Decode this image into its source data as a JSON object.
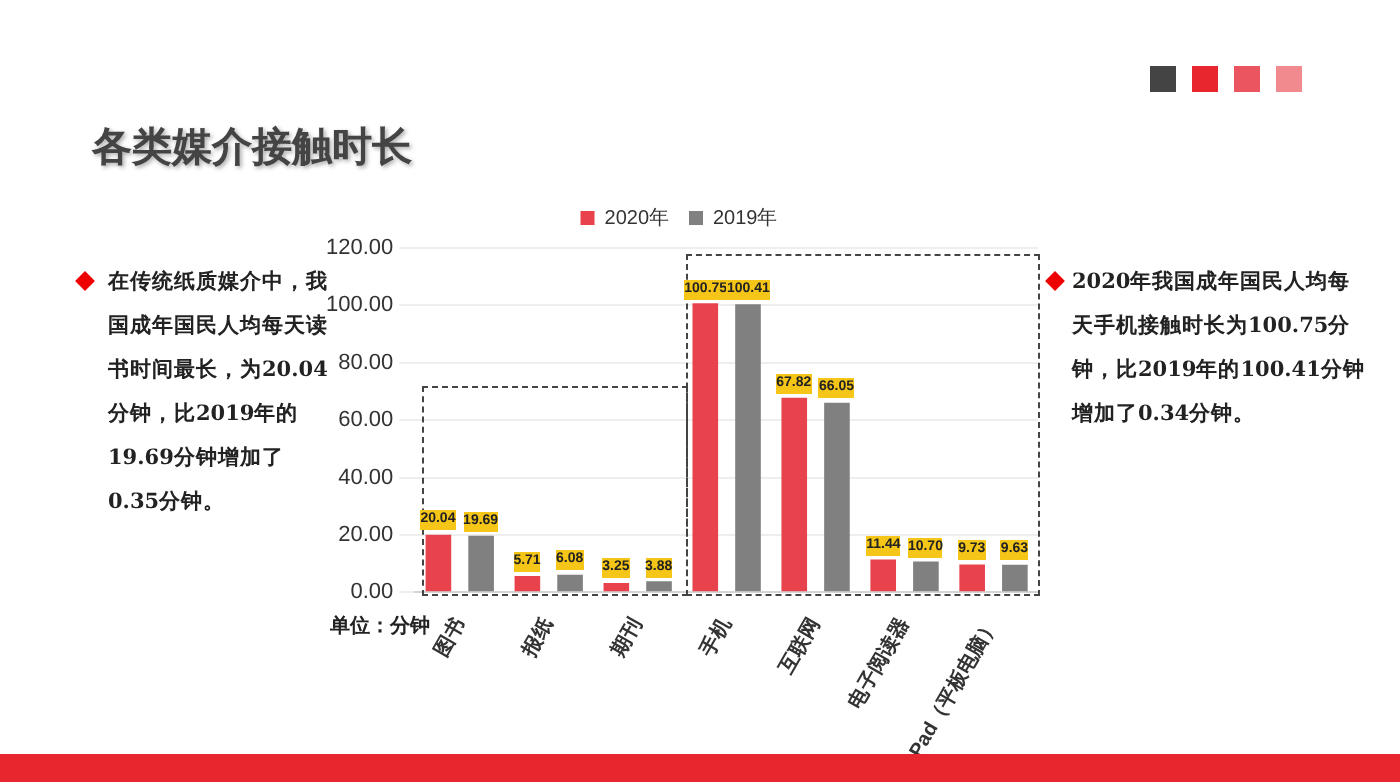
{
  "chart_data": {
    "type": "bar",
    "title": "各类媒介接触时长",
    "categories": [
      "图书",
      "报纸",
      "期刊",
      "手机",
      "互联网",
      "电子阅读器",
      "Pad（平板电脑）"
    ],
    "series": [
      {
        "name": "2020年",
        "color": "#e8434d",
        "values": [
          20.04,
          5.71,
          3.25,
          100.75,
          67.82,
          11.44,
          9.73
        ],
        "value_labels": [
          "20.04",
          "5.71",
          "3.25",
          "100.75",
          "67.82",
          "11.44",
          "9.73"
        ]
      },
      {
        "name": "2019年",
        "color": "#808080",
        "values": [
          19.69,
          6.08,
          3.88,
          100.41,
          66.05,
          10.7,
          9.63
        ],
        "value_labels": [
          "19.69",
          "6.08",
          "3.88",
          "100.41",
          "66.05",
          "10.70",
          "9.63"
        ]
      }
    ],
    "ylim": [
      0,
      120
    ],
    "yticks": [
      {
        "value": 0,
        "label": "0.00"
      },
      {
        "value": 20,
        "label": "20.00"
      },
      {
        "value": 40,
        "label": "40.00"
      },
      {
        "value": 60,
        "label": "60.00"
      },
      {
        "value": 80,
        "label": "80.00"
      },
      {
        "value": 100,
        "label": "100.00"
      },
      {
        "value": 120,
        "label": "120.00"
      }
    ],
    "grid": "y",
    "legend": "top",
    "annotations": [
      "单位：分钟",
      "在传统纸质媒介中，我国成年国民人均每天读书时间最长，为20.04分钟，比2019年的19.69分钟增加了0.35分钟。",
      "2020年我国成年国民人均每天手机接触时长为100.75分钟，比2019年的100.41分钟增加了0.34分钟。"
    ]
  }
}
